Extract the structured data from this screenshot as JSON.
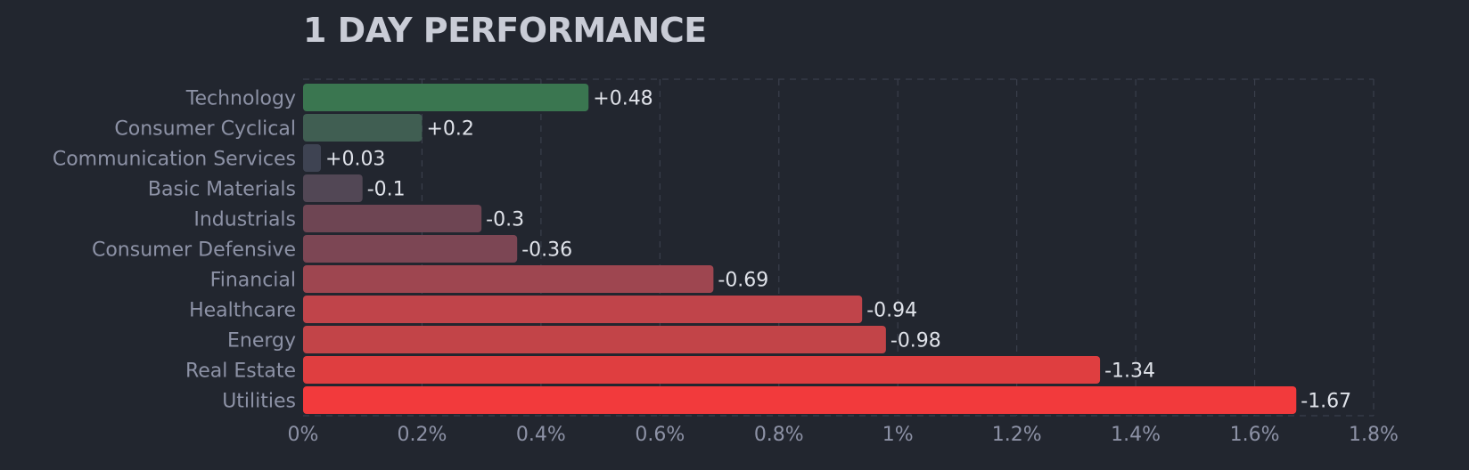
{
  "chart_data": {
    "type": "bar",
    "orientation": "horizontal",
    "title": "1 DAY PERFORMANCE",
    "categories": [
      "Technology",
      "Consumer Cyclical",
      "Communication Services",
      "Basic Materials",
      "Industrials",
      "Consumer Defensive",
      "Financial",
      "Healthcare",
      "Energy",
      "Real Estate",
      "Utilities"
    ],
    "values": [
      0.48,
      0.2,
      0.03,
      -0.1,
      -0.3,
      -0.36,
      -0.69,
      -0.94,
      -0.98,
      -1.34,
      -1.67
    ],
    "value_labels": [
      "+0.48",
      "+0.2",
      "+0.03",
      "-0.1",
      "-0.3",
      "-0.36",
      "-0.69",
      "-0.94",
      "-0.98",
      "-1.34",
      "-1.67"
    ],
    "bar_colors": [
      "#3a7650",
      "#405e52",
      "#3e4352",
      "#524755",
      "#6e4553",
      "#7c4654",
      "#9e4650",
      "#c0444a",
      "#c24448",
      "#df3e40",
      "#f23a3c"
    ],
    "x_ticks": [
      0,
      0.2,
      0.4,
      0.6,
      0.8,
      1,
      1.2,
      1.4,
      1.6,
      1.8
    ],
    "x_tick_labels": [
      "0%",
      "0.2%",
      "0.4%",
      "0.6%",
      "0.8%",
      "1%",
      "1.2%",
      "1.4%",
      "1.6%",
      "1.8%"
    ],
    "xlim": [
      0,
      1.8
    ],
    "xlabel": "",
    "ylabel": "",
    "grid": true,
    "legend": "none"
  }
}
